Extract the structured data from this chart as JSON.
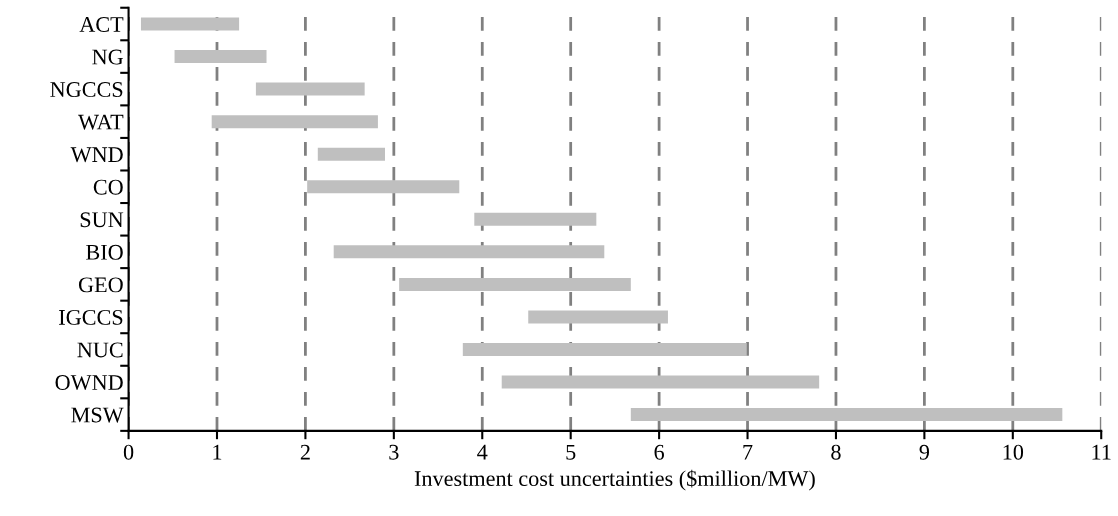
{
  "chart_data": {
    "type": "bar",
    "orientation": "horizontal",
    "xlabel": "Investment cost uncertainties ($million/MW)",
    "categories": [
      "ACT",
      "NG",
      "NGCCS",
      "WAT",
      "WND",
      "CO",
      "SUN",
      "BIO",
      "GEO",
      "IGCCS",
      "NUC",
      "OWND",
      "MSW"
    ],
    "base": [
      0.14,
      0.52,
      1.44,
      0.94,
      2.14,
      2.02,
      3.91,
      2.32,
      3.06,
      4.52,
      3.78,
      4.22,
      5.68
    ],
    "values": [
      1.11,
      1.04,
      1.23,
      1.88,
      0.76,
      1.72,
      1.38,
      3.06,
      2.62,
      1.58,
      3.21,
      3.59,
      4.88
    ],
    "color": "#bfbfbf",
    "xlim": [
      0,
      11
    ],
    "xticks": [
      0,
      1,
      2,
      3,
      4,
      5,
      6,
      7,
      8,
      9,
      10,
      11
    ],
    "grid": "x",
    "line_style": "dashed"
  }
}
